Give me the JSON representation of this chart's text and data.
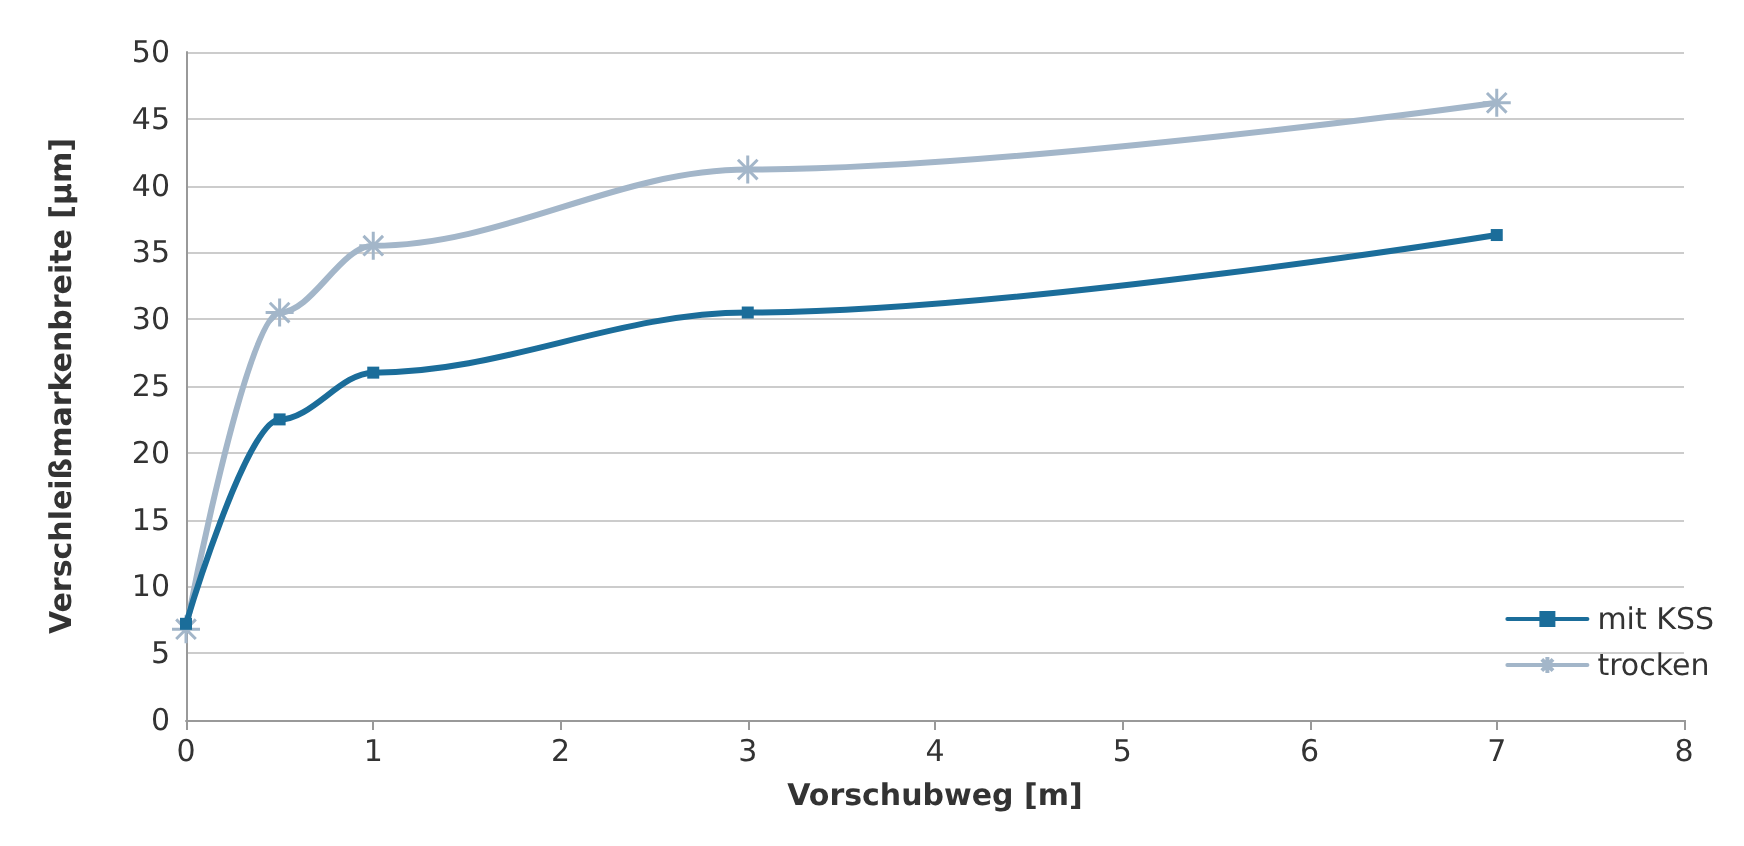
{
  "chart_data": {
    "type": "line",
    "xlabel": "Vorschubweg [m]",
    "ylabel": "Verschleißmarkenbreite [µm]",
    "series": [
      {
        "name": "mit KSS",
        "color": "#1b6d9a",
        "x": [
          0,
          0.5,
          1,
          3,
          7
        ],
        "values": [
          7.2,
          22.5,
          26,
          30.5,
          36.3
        ],
        "marker": "square"
      },
      {
        "name": "trocken",
        "color": "#a3b6c9",
        "x": [
          0,
          0.5,
          1,
          3,
          7
        ],
        "values": [
          6.8,
          30.5,
          35.5,
          41.2,
          46.2
        ],
        "marker": "cross"
      }
    ],
    "xlim": [
      0,
      8
    ],
    "xticks": [
      0,
      1,
      2,
      3,
      4,
      5,
      6,
      7,
      8
    ],
    "ylim": [
      0,
      50
    ],
    "yticks": [
      0,
      5,
      10,
      15,
      20,
      25,
      30,
      35,
      40,
      45,
      50
    ],
    "grid": "y",
    "legend": "bottom right"
  }
}
